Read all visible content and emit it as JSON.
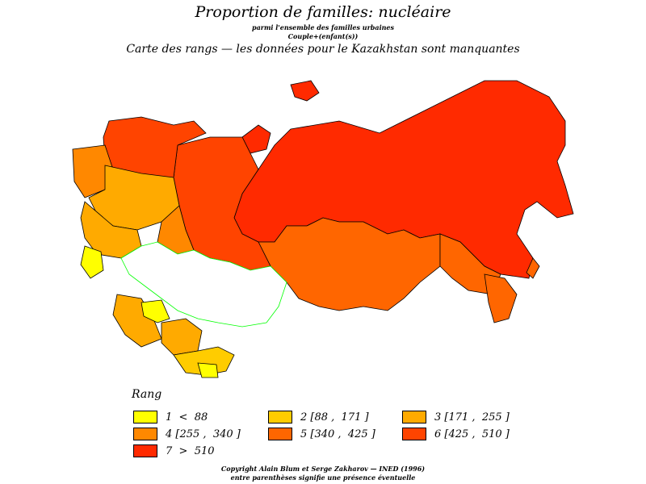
{
  "header": {
    "title": "Proportion de familles: nucléaire",
    "subtitle_1": "parmi l'ensemble des familles urbaines",
    "subtitle_2": "Couple+(enfant(s))",
    "caption": "Carte des  rangs  —  les données pour le Kazakhstan sont manquantes"
  },
  "legend": {
    "title": "Rang",
    "items": [
      {
        "label": "1  <  88",
        "color": "#ffff00"
      },
      {
        "label": "2 [88 ,  171 ]",
        "color": "#ffcc00"
      },
      {
        "label": "3 [171 ,  255 ]",
        "color": "#ffaa00"
      },
      {
        "label": "4 [255 ,  340 ]",
        "color": "#ff8800"
      },
      {
        "label": "5 [340 ,  425 ]",
        "color": "#ff6600"
      },
      {
        "label": "6 [425 ,  510 ]",
        "color": "#ff4400"
      },
      {
        "label": "7  >  510",
        "color": "#ff2a00"
      }
    ]
  },
  "map": {
    "missing_region": "Kazakhstan",
    "missing_color": "#ffffff",
    "border_color_missing": "#00ff00"
  },
  "footer": {
    "line_1": "Copyright Alain Blum et Serge Zakharov  —  INED (1996)",
    "line_2": "entre parenthèses signifie une présence éventuelle"
  }
}
